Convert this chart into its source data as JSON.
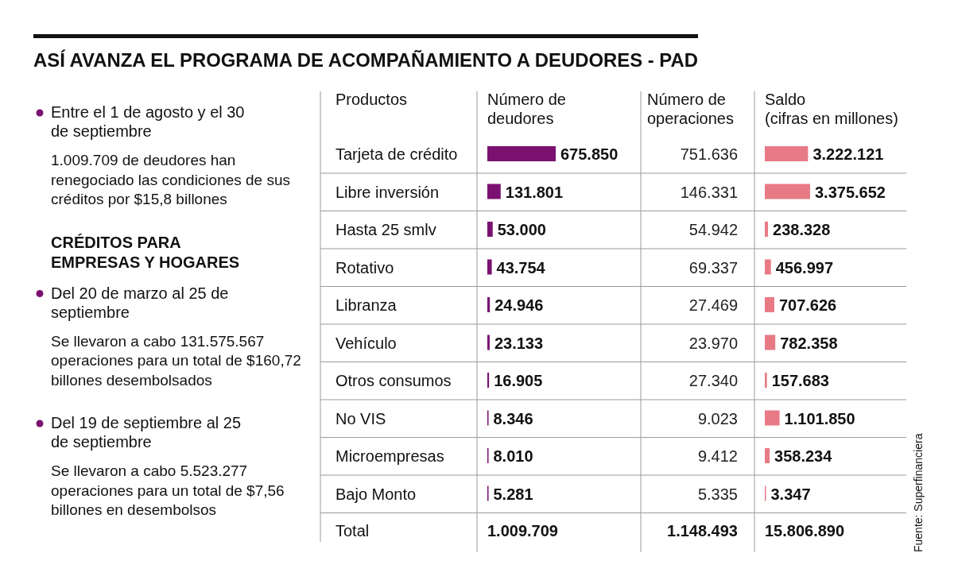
{
  "chart_data": [
    {
      "type": "other",
      "title": "ASÍ AVANZA EL PROGRAMA DE ACOMPAÑAMIENTO A DEUDORES - PAD",
      "annotations": [
        "Entre el 1 de agosto y el 30 de septiembre",
        "1.009.709 de deudores han renegociado las condiciones de sus créditos por $15,8 billones",
        "CRÉDITOS PARA EMPRESAS Y HOGARES",
        "Del 20 de marzo al 25 de septiembre",
        "Se llevaron a cabo 131.575.567 operaciones para un total de $160,72 billones desembolsados",
        "Del 19 de septiembre al 25 de septiembre",
        "Se llevaron a cabo 5.523.277 operaciones para un total de $7,56 billones en desembolsos",
        "Fuente: Superfinanciera"
      ]
    },
    {
      "type": "bar",
      "orientation": "horizontal",
      "title": "Número de deudores",
      "ylabel": "Productos",
      "categories": [
        "Tarjeta de crédito",
        "Libre inversión",
        "Hasta 25 smlv",
        "Rotativo",
        "Libranza",
        "Vehículo",
        "Otros consumos",
        "No VIS",
        "Microempresas",
        "Bajo Monto"
      ],
      "values": [
        675850,
        131801,
        53000,
        43754,
        24946,
        23133,
        16905,
        8346,
        8010,
        5281
      ],
      "value_labels": [
        "675.850",
        "131.801",
        "53.000",
        "43.754",
        "24.946",
        "23.133",
        "16.905",
        "8.346",
        "8.010",
        "5.281"
      ],
      "color": "#7b1170",
      "annotations": [
        "Total",
        "1.009.709"
      ]
    },
    {
      "type": "other",
      "title": "Número de operaciones",
      "values": [
        751636,
        146331,
        54942,
        69337,
        27469,
        23970,
        27340,
        9023,
        9412,
        5335
      ],
      "value_labels": [
        "751.636",
        "146.331",
        "54.942",
        "69.337",
        "27.469",
        "23.970",
        "27.340",
        "9.023",
        "9.412",
        "5.335"
      ],
      "annotations": [
        "1.148.493"
      ]
    },
    {
      "type": "bar",
      "orientation": "horizontal",
      "title": "Saldo",
      "subtitle": "(cifras en millones)",
      "values": [
        3222121,
        3375652,
        238328,
        456997,
        707626,
        782358,
        157683,
        1101850,
        358234,
        3347
      ],
      "value_labels": [
        "3.222.121",
        "3.375.652",
        "238.328",
        "456.997",
        "707.626",
        "782.358",
        "157.683",
        "1.101.850",
        "358.234",
        "3.347"
      ],
      "color": "#e87a86",
      "annotations": [
        "15.806.890"
      ]
    }
  ]
}
